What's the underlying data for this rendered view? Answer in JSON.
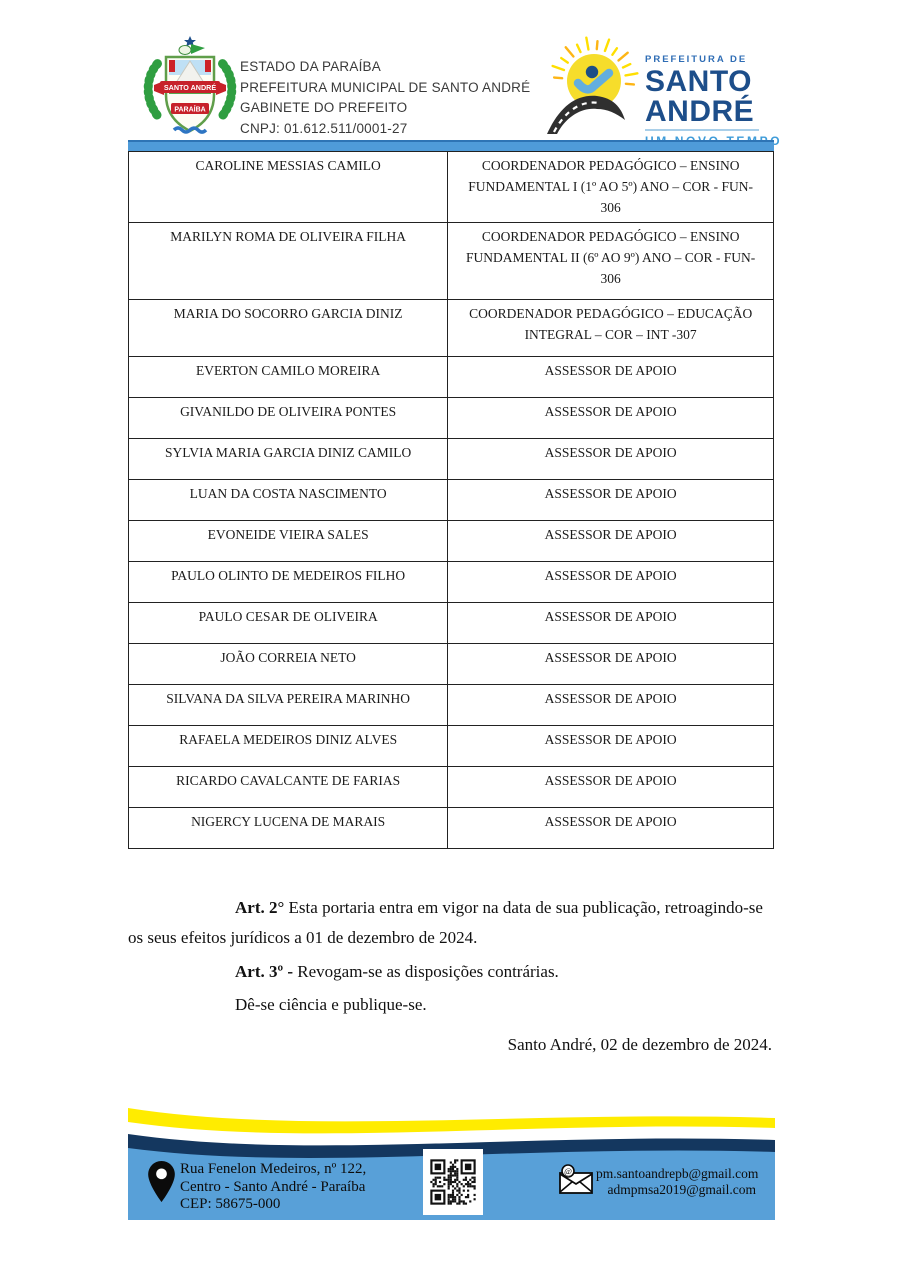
{
  "header": {
    "org_lines": [
      "ESTADO DA PARAÍBA",
      "PREFEITURA MUNICIPAL DE SANTO ANDRÉ",
      "GABINETE DO PREFEITO",
      "CNPJ: 01.612.511/0001-27"
    ],
    "crest": {
      "banner1": "SANTO ANDRÉ",
      "banner2": "PARAÍBA"
    },
    "logo": {
      "top": "PREFEITURA DE",
      "name_line1": "SANTO",
      "name_line2": "ANDRÉ",
      "tagline": "UM NOVO TEMPO"
    }
  },
  "table": {
    "rows": [
      {
        "name": "CAROLINE MESSIAS CAMILO",
        "role": "COORDENADOR PEDAGÓGICO – ENSINO FUNDAMENTAL I (1º AO 5º) ANO – COR - FUN-306"
      },
      {
        "name": "MARILYN ROMA DE OLIVEIRA FILHA",
        "role": "COORDENADOR PEDAGÓGICO – ENSINO FUNDAMENTAL II (6º AO 9º) ANO – COR - FUN-306"
      },
      {
        "name": "MARIA DO SOCORRO GARCIA DINIZ",
        "role": "COORDENADOR PEDAGÓGICO – EDUCAÇÃO INTEGRAL – COR – INT -307"
      },
      {
        "name": "EVERTON CAMILO MOREIRA",
        "role": "ASSESSOR DE APOIO"
      },
      {
        "name": "GIVANILDO DE OLIVEIRA PONTES",
        "role": "ASSESSOR DE APOIO"
      },
      {
        "name": "SYLVIA MARIA GARCIA DINIZ CAMILO",
        "role": "ASSESSOR DE APOIO"
      },
      {
        "name": "LUAN DA COSTA NASCIMENTO",
        "role": "ASSESSOR DE APOIO"
      },
      {
        "name": "EVONEIDE VIEIRA SALES",
        "role": "ASSESSOR DE APOIO"
      },
      {
        "name": "PAULO OLINTO DE MEDEIROS FILHO",
        "role": "ASSESSOR DE APOIO"
      },
      {
        "name": "PAULO CESAR DE OLIVEIRA",
        "role": "ASSESSOR DE APOIO"
      },
      {
        "name": "JOÃO CORREIA NETO",
        "role": "ASSESSOR DE APOIO"
      },
      {
        "name": "SILVANA DA SILVA PEREIRA MARINHO",
        "role": "ASSESSOR DE APOIO"
      },
      {
        "name": "RAFAELA MEDEIROS DINIZ ALVES",
        "role": "ASSESSOR DE APOIO"
      },
      {
        "name": "RICARDO CAVALCANTE DE FARIAS",
        "role": "ASSESSOR DE APOIO"
      },
      {
        "name": "NIGERCY LUCENA DE MARAIS",
        "role": "ASSESSOR DE APOIO"
      }
    ]
  },
  "body": {
    "art2_label": "Art. 2°",
    "art2_rest": " Esta portaria entra em vigor na data de sua publicação, retroagindo-se os seus efeitos jurídicos a 01 de dezembro de 2024.",
    "art3_label": "Art. 3º -",
    "art3_rest": " Revogam-se as disposições contrárias.",
    "publish_line": "Dê-se ciência e publique-se.",
    "date_line": "Santo André, 02 de dezembro de 2024."
  },
  "footer": {
    "address_lines": [
      "Rua Fenelon Medeiros, nº 122,",
      "Centro - Santo André - Paraíba",
      "CEP: 58675-000"
    ],
    "emails": [
      "pm.santoandrepb@gmail.com",
      "admpmsa2019@gmail.com"
    ]
  },
  "colors": {
    "bar-blue": "#4f9bd9",
    "footer-blue": "#58a0d8",
    "wave-navy": "#14375f",
    "wave-yellow": "#ffec00",
    "logo-navy": "#1d4e8a",
    "logo-blue": "#2f6db5",
    "logo-lightblue": "#3f9cd9",
    "sun-yellow": "#f6dd2b",
    "text-dark": "#1a1a1a"
  }
}
